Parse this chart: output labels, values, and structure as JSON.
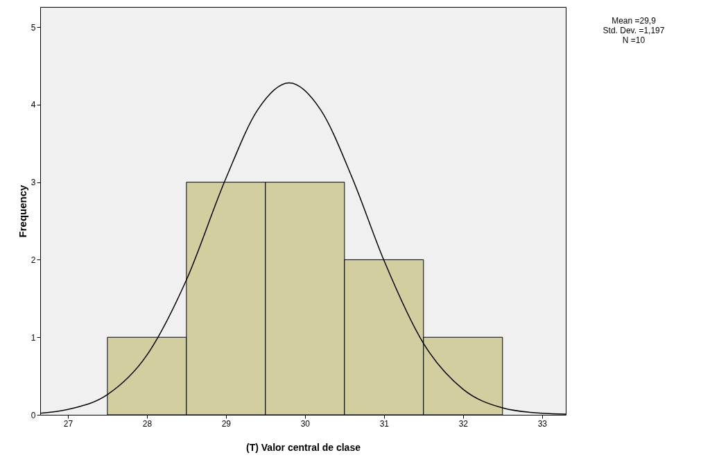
{
  "chart_data": {
    "type": "histogram",
    "xlabel": "(T) Valor central de clase",
    "ylabel": "Frequency",
    "bins": [
      27.5,
      28.5,
      29.5,
      30.5,
      31.5,
      32.5
    ],
    "values": [
      1,
      3,
      3,
      2,
      1
    ],
    "color": "#d3ce9f",
    "series": [
      {
        "type": "line",
        "color": "#000000",
        "x": [
          26.65,
          27,
          27.5,
          28,
          28.5,
          29,
          29.4,
          29.8,
          30.2,
          30.6,
          31,
          31.5,
          32,
          32.5,
          33,
          33.3
        ],
        "values": [
          0.02,
          0.07,
          0.26,
          0.77,
          1.74,
          3.05,
          3.93,
          4.28,
          3.93,
          3.05,
          1.99,
          0.92,
          0.33,
          0.09,
          0.02,
          0.01
        ]
      }
    ],
    "xlim": [
      26.65,
      33.3
    ],
    "ylim": [
      0,
      5.26
    ],
    "xticks": [
      27,
      28,
      29,
      30,
      31,
      32,
      33
    ],
    "yticks": [
      0,
      1,
      2,
      3,
      4,
      5
    ],
    "annotations": [
      "Mean =29,9",
      "Std. Dev. =1,197",
      "N =10"
    ]
  }
}
